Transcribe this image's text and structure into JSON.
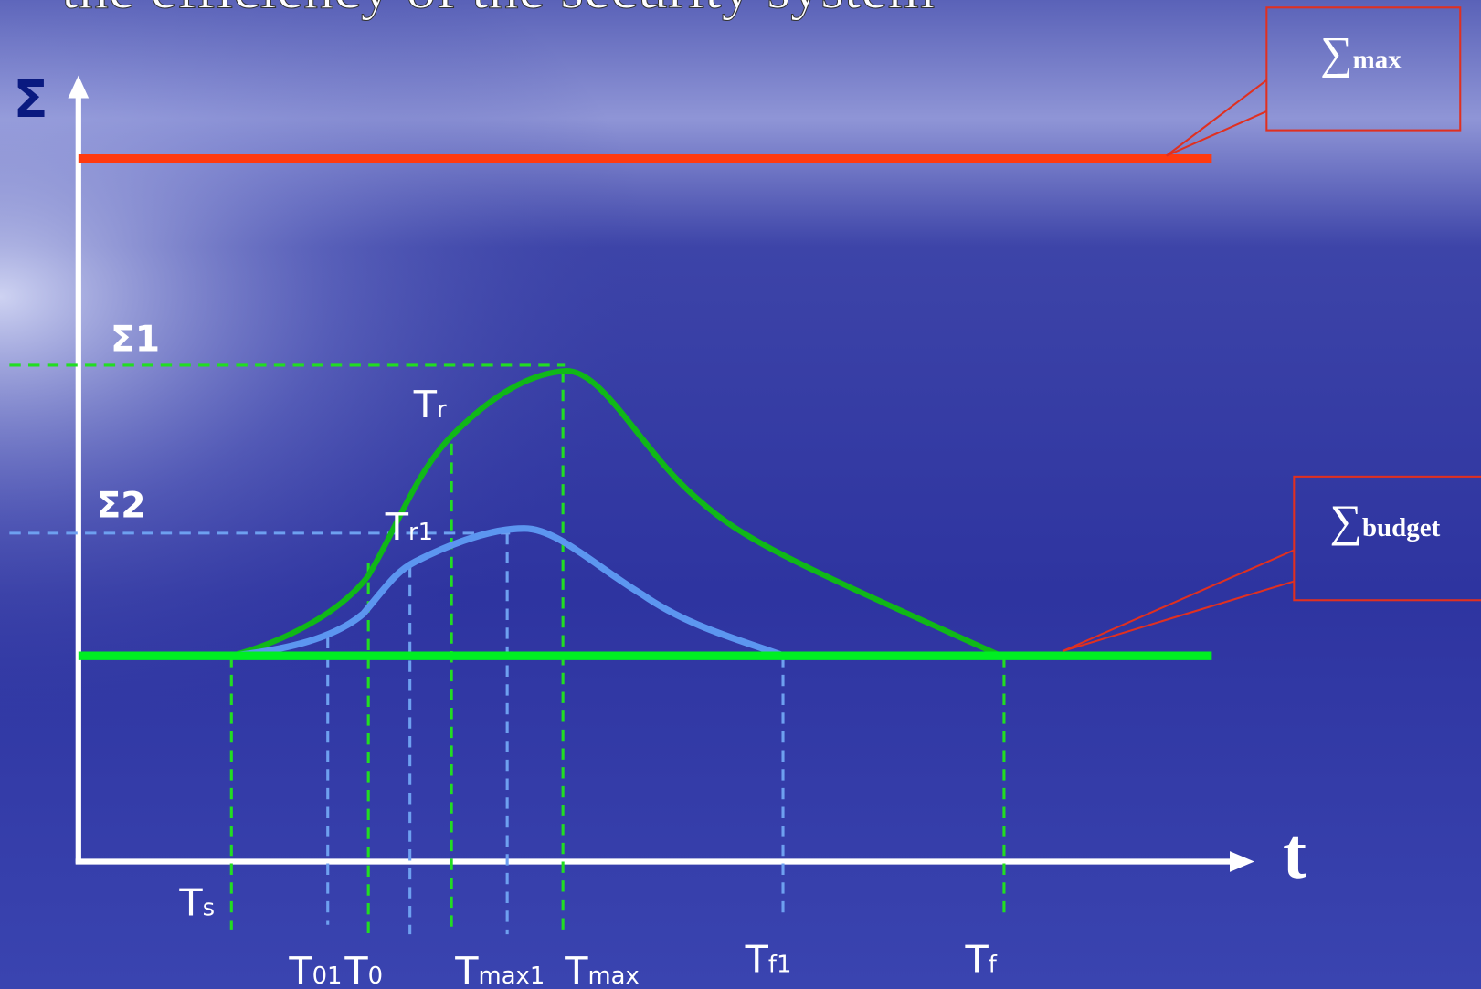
{
  "title": "the efficiency of the security system",
  "axes": {
    "y": "Σ",
    "x": "t"
  },
  "levels": [
    "Σ1",
    "Σ2"
  ],
  "callouts": [
    {
      "symbol": "∑",
      "label": "max"
    },
    {
      "symbol": "∑",
      "label": "budget"
    }
  ],
  "curve_labels": [
    {
      "main": "T",
      "sub": "r"
    },
    {
      "main": "T",
      "sub": "r1"
    }
  ],
  "time_marks": [
    {
      "main": "T",
      "sub": "s"
    },
    {
      "main": "T",
      "sub": "01"
    },
    {
      "main": "T",
      "sub": "0"
    },
    {
      "main": "T",
      "sub": "max1"
    },
    {
      "main": "T",
      "sub": "max"
    },
    {
      "main": "T",
      "sub": "f1"
    },
    {
      "main": "T",
      "sub": "f"
    }
  ]
}
